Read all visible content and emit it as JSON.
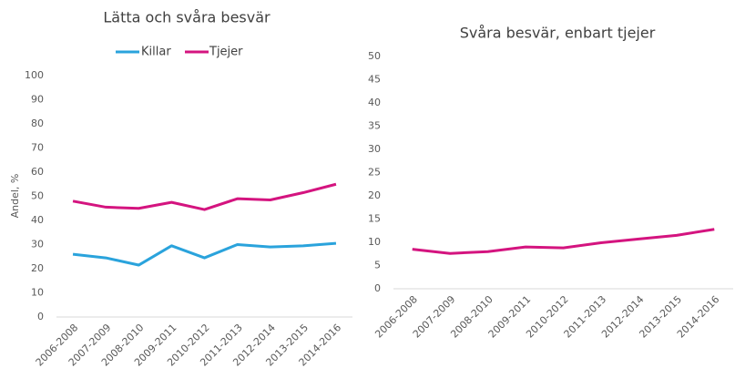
{
  "chart_data": [
    {
      "type": "line",
      "title": "Lätta och svåra besvär",
      "y_label": "Andel, %",
      "categories": [
        "2006-2008",
        "2007-2009",
        "2008-2010",
        "2009-2011",
        "2010-2012",
        "2011-2013",
        "2012-2014",
        "2013-2015",
        "2014-2016"
      ],
      "series": [
        {
          "name": "Killar",
          "color": "#2aa3dc",
          "values": [
            26,
            24.5,
            21.5,
            29.5,
            24.5,
            30,
            29,
            29.5,
            30.5
          ]
        },
        {
          "name": "Tjejer",
          "color": "#d4147f",
          "values": [
            48,
            45.5,
            45,
            47.5,
            44.5,
            49,
            48.5,
            51.5,
            55
          ]
        }
      ],
      "ylim": [
        0,
        100
      ],
      "yticks": [
        0,
        10,
        20,
        30,
        40,
        50,
        60,
        70,
        80,
        90,
        100
      ],
      "legend": "top",
      "grid": false
    },
    {
      "type": "line",
      "title": "Svåra besvär, enbart tjejer",
      "categories": [
        "2006-2008",
        "2007-2009",
        "2008-2010",
        "2009-2011",
        "2010-2012",
        "2011-2013",
        "2012-2014",
        "2013-2015",
        "2014-2016"
      ],
      "values": [
        8.5,
        7.6,
        8,
        9,
        8.8,
        9.9,
        10.7,
        11.5,
        12.8
      ],
      "color": "#d4147f",
      "ylim": [
        0,
        50
      ],
      "yticks": [
        0,
        5,
        10,
        15,
        20,
        25,
        30,
        35,
        40,
        45,
        50
      ],
      "grid": false
    }
  ]
}
